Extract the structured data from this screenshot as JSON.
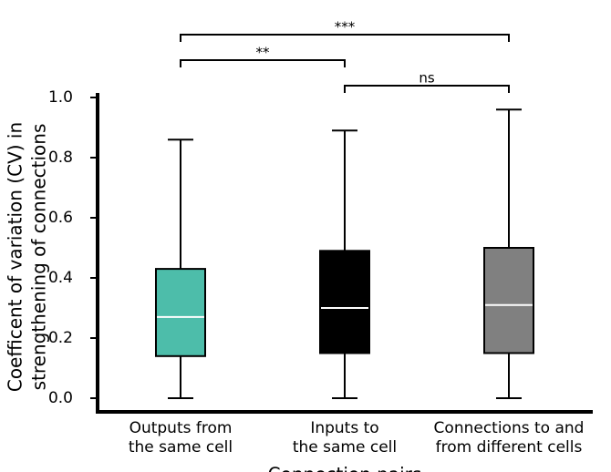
{
  "chart_data": {
    "type": "box",
    "ylabel": [
      "Coefficent of variation (CV) in",
      "strengthening of connections"
    ],
    "xlabel": "Connection pairs",
    "categories": [
      [
        "Outputs from",
        "the same cell"
      ],
      [
        "Inputs to",
        "the same cell"
      ],
      [
        "Connections to and",
        "from different cells"
      ]
    ],
    "series": [
      {
        "color": "#4dbdaa",
        "min": 0,
        "q1": 0.14,
        "median": 0.27,
        "q3": 0.43,
        "max": 0.86
      },
      {
        "color": "#000000",
        "min": 0,
        "q1": 0.15,
        "median": 0.3,
        "q3": 0.49,
        "max": 0.89
      },
      {
        "color": "#808080",
        "min": 0,
        "q1": 0.15,
        "median": 0.31,
        "q3": 0.5,
        "max": 0.96
      }
    ],
    "ylim": [
      0,
      1
    ],
    "yticks": [
      {
        "value": 0,
        "label": "0.0"
      },
      0.2,
      0.4,
      0.6,
      0.8,
      {
        "value": 1,
        "label": "1.0"
      }
    ],
    "significance": [
      {
        "label": "***",
        "groups": [
          0,
          2
        ]
      },
      {
        "label": "**",
        "groups": [
          0,
          1
        ]
      },
      {
        "label": "ns",
        "groups": [
          1,
          2
        ]
      }
    ]
  }
}
